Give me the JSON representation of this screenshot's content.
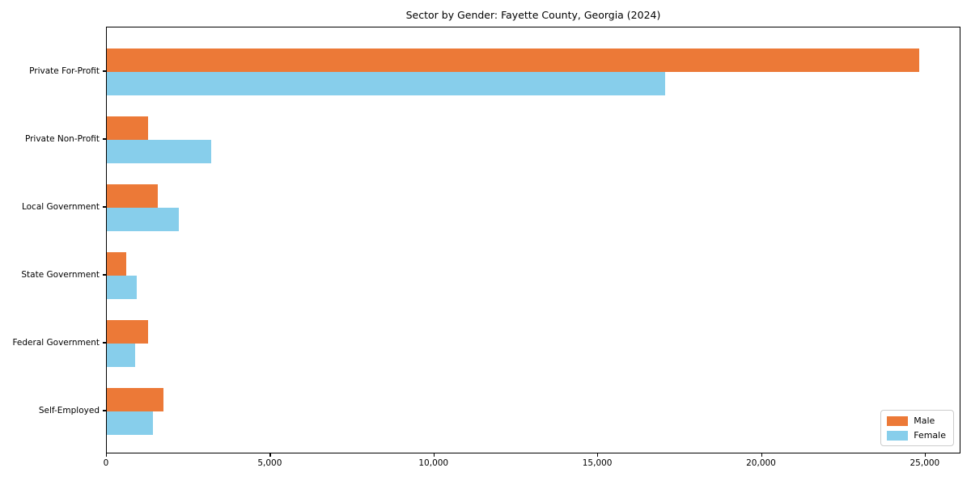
{
  "chart_data": {
    "type": "bar",
    "orientation": "horizontal",
    "title": "Sector by Gender: Fayette County, Georgia (2024)",
    "categories": [
      "Private For-Profit",
      "Private Non-Profit",
      "Local Government",
      "State Government",
      "Federal Government",
      "Self-Employed"
    ],
    "series": [
      {
        "name": "Male",
        "color": "#EC7937",
        "values": [
          24800,
          1260,
          1560,
          590,
          1260,
          1730
        ]
      },
      {
        "name": "Female",
        "color": "#87CEEB",
        "values": [
          17050,
          3190,
          2200,
          910,
          870,
          1410
        ]
      }
    ],
    "xlabel": "",
    "ylabel": "",
    "xlim": [
      0,
      26090
    ],
    "xticks": [
      {
        "value": 0,
        "label": "0"
      },
      {
        "value": 5000,
        "label": "5,000"
      },
      {
        "value": 10000,
        "label": "10,000"
      },
      {
        "value": 15000,
        "label": "15,000"
      },
      {
        "value": 20000,
        "label": "20,000"
      },
      {
        "value": 25000,
        "label": "25,000"
      }
    ],
    "grid": false,
    "legend_position": "lower right",
    "legend_entries": [
      "Male",
      "Female"
    ]
  }
}
